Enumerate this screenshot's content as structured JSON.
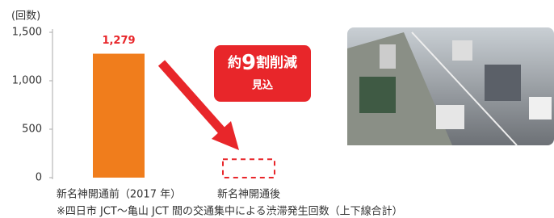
{
  "chart_data": {
    "type": "bar",
    "y_axis_label": "(回数)",
    "categories": [
      "新名神開通前（2017 年）",
      "新名神開通後"
    ],
    "values": [
      1279,
      190
    ],
    "value_labels": [
      "1,279",
      null
    ],
    "color": "#f07d1c",
    "projected_color": "#e8262a",
    "ylim": [
      0,
      1500
    ],
    "yticks": [
      0,
      500,
      {
        "value": 1000,
        "label": "1,000"
      },
      {
        "value": 1500,
        "label": "1,500"
      }
    ],
    "annotation": [
      "約",
      "9",
      "割削減",
      "見込"
    ],
    "footnote": "※四日市 JCT～亀山 JCT 間の交通集中による渋滞発生回数（上下線合計）"
  }
}
